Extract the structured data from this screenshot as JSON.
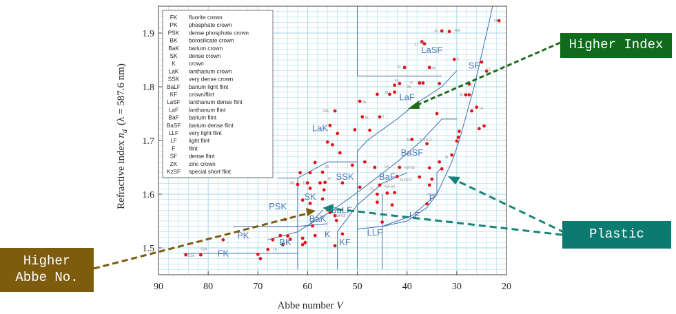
{
  "chart_data": {
    "type": "scatter",
    "title": "",
    "xlabel_main": "Abbe number",
    "xlabel_var": "V",
    "ylabel_main": "Refractive index",
    "ylabel_var": "n",
    "ylabel_sub": "d",
    "ylabel_paren": "(λ = 587.6 nm)",
    "xlim": [
      90,
      20
    ],
    "ylim": [
      1.45,
      1.95
    ],
    "x_ticks": [
      "90",
      "80",
      "70",
      "60",
      "50",
      "40",
      "30",
      "20"
    ],
    "y_ticks": [
      "1.5",
      "1.6",
      "1.7",
      "1.8",
      "1.9"
    ],
    "grid": true,
    "legend": [
      {
        "abbr": "FK",
        "desc": "fluorite crown"
      },
      {
        "abbr": "PK",
        "desc": "phosphate crown"
      },
      {
        "abbr": "PSK",
        "desc": "dense phosphate crown"
      },
      {
        "abbr": "BK",
        "desc": "borosilicate crown"
      },
      {
        "abbr": "BaK",
        "desc": "barium crown"
      },
      {
        "abbr": "SK",
        "desc": "dense crown"
      },
      {
        "abbr": "K",
        "desc": "crown"
      },
      {
        "abbr": "LaK",
        "desc": "lanthanum crown"
      },
      {
        "abbr": "SSK",
        "desc": "very dense crown"
      },
      {
        "abbr": "BaLF",
        "desc": "barium light flint"
      },
      {
        "abbr": "KF",
        "desc": "crown/flint"
      },
      {
        "abbr": "LaSF",
        "desc": "lanthanum dense flint"
      },
      {
        "abbr": "LaF",
        "desc": "lanthanum flint"
      },
      {
        "abbr": "BaF",
        "desc": "barium flint"
      },
      {
        "abbr": "BaSF",
        "desc": "barium dense flint"
      },
      {
        "abbr": "LLF",
        "desc": "very light flint"
      },
      {
        "abbr": "LF",
        "desc": "light flint"
      },
      {
        "abbr": "F",
        "desc": "flint"
      },
      {
        "abbr": "SF",
        "desc": "dense flint"
      },
      {
        "abbr": "ZK",
        "desc": "zinc crown"
      },
      {
        "abbr": "KzSF",
        "desc": "special short flint"
      }
    ],
    "region_labels": [
      {
        "text": "FK",
        "x": 77,
        "y": 1.484
      },
      {
        "text": "PK",
        "x": 73,
        "y": 1.517
      },
      {
        "text": "BK",
        "x": 64.5,
        "y": 1.505
      },
      {
        "text": "PSK",
        "x": 66,
        "y": 1.572
      },
      {
        "text": "BaK",
        "x": 58,
        "y": 1.549
      },
      {
        "text": "SK",
        "x": 59.5,
        "y": 1.59
      },
      {
        "text": "K",
        "x": 56,
        "y": 1.52
      },
      {
        "text": "BaLF",
        "x": 53.2,
        "y": 1.565
      },
      {
        "text": "KF",
        "x": 52.5,
        "y": 1.505
      },
      {
        "text": "LLF",
        "x": 46.5,
        "y": 1.523
      },
      {
        "text": "LF",
        "x": 38.5,
        "y": 1.555
      },
      {
        "text": "F",
        "x": 35,
        "y": 1.587
      },
      {
        "text": "SSK",
        "x": 52.5,
        "y": 1.627
      },
      {
        "text": "BaF",
        "x": 44,
        "y": 1.627
      },
      {
        "text": "BaSF",
        "x": 39,
        "y": 1.672
      },
      {
        "text": "LaK",
        "x": 57.5,
        "y": 1.717
      },
      {
        "text": "LaF",
        "x": 40,
        "y": 1.775
      },
      {
        "text": "LaSF",
        "x": 35,
        "y": 1.863
      },
      {
        "text": "SF",
        "x": 26.5,
        "y": 1.834
      }
    ],
    "points": [
      [
        21.5,
        1.923
      ],
      [
        31.5,
        1.903
      ],
      [
        33,
        1.904
      ],
      [
        36.5,
        1.88
      ],
      [
        37,
        1.884
      ],
      [
        30.5,
        1.851
      ],
      [
        25,
        1.846
      ],
      [
        40.5,
        1.836
      ],
      [
        35.5,
        1.836
      ],
      [
        24,
        1.829
      ],
      [
        41.5,
        1.806
      ],
      [
        37.5,
        1.807
      ],
      [
        36.8,
        1.807
      ],
      [
        33.5,
        1.806
      ],
      [
        42.5,
        1.803
      ],
      [
        27.5,
        1.805
      ],
      [
        42.5,
        1.79
      ],
      [
        43.5,
        1.786
      ],
      [
        27.5,
        1.785
      ],
      [
        28.2,
        1.785
      ],
      [
        46,
        1.786
      ],
      [
        49.5,
        1.773
      ],
      [
        26,
        1.762
      ],
      [
        27,
        1.755
      ],
      [
        54.5,
        1.755
      ],
      [
        34,
        1.75
      ],
      [
        49,
        1.744
      ],
      [
        45.5,
        1.744
      ],
      [
        24.5,
        1.727
      ],
      [
        55.5,
        1.728
      ],
      [
        25.5,
        1.722
      ],
      [
        50.5,
        1.72
      ],
      [
        47.5,
        1.719
      ],
      [
        54,
        1.713
      ],
      [
        29.5,
        1.717
      ],
      [
        29.7,
        1.706
      ],
      [
        30,
        1.699
      ],
      [
        56,
        1.697
      ],
      [
        55,
        1.692
      ],
      [
        39,
        1.702
      ],
      [
        36,
        1.694
      ],
      [
        53.5,
        1.677
      ],
      [
        31,
        1.673
      ],
      [
        33.5,
        1.66
      ],
      [
        48.5,
        1.66
      ],
      [
        58.5,
        1.659
      ],
      [
        51,
        1.654
      ],
      [
        46.5,
        1.65
      ],
      [
        41.5,
        1.65
      ],
      [
        35.5,
        1.649
      ],
      [
        33,
        1.647
      ],
      [
        59.5,
        1.64
      ],
      [
        57,
        1.641
      ],
      [
        61.5,
        1.64
      ],
      [
        37.5,
        1.632
      ],
      [
        42,
        1.633
      ],
      [
        35,
        1.628
      ],
      [
        35.5,
        1.617
      ],
      [
        45.5,
        1.617
      ],
      [
        49.5,
        1.613
      ],
      [
        46,
        1.6
      ],
      [
        56.5,
        1.622
      ],
      [
        53,
        1.621
      ],
      [
        57.5,
        1.621
      ],
      [
        60,
        1.621
      ],
      [
        62,
        1.618
      ],
      [
        59.5,
        1.611
      ],
      [
        56.7,
        1.608
      ],
      [
        42.5,
        1.603
      ],
      [
        44,
        1.602
      ],
      [
        57,
        1.591
      ],
      [
        61,
        1.589
      ],
      [
        59.5,
        1.583
      ],
      [
        43,
        1.58
      ],
      [
        36,
        1.582
      ],
      [
        46,
        1.585
      ],
      [
        56,
        1.574
      ],
      [
        56,
        1.571
      ],
      [
        55.5,
        1.566
      ],
      [
        54.5,
        1.56
      ],
      [
        54.2,
        1.551
      ],
      [
        45,
        1.548
      ],
      [
        64.5,
        1.553
      ],
      [
        59,
        1.541
      ],
      [
        53,
        1.526
      ],
      [
        58.5,
        1.523
      ],
      [
        61,
        1.518
      ],
      [
        63.5,
        1.516
      ],
      [
        64,
        1.522
      ],
      [
        65.5,
        1.523
      ],
      [
        67,
        1.515
      ],
      [
        69.5,
        1.48
      ],
      [
        77,
        1.515
      ],
      [
        60.5,
        1.51
      ],
      [
        61,
        1.506
      ],
      [
        54.5,
        1.504
      ],
      [
        65,
        1.506
      ],
      [
        68,
        1.497
      ],
      [
        70,
        1.488
      ],
      [
        81.5,
        1.487
      ],
      [
        84.5,
        1.487
      ]
    ],
    "point_labels": [
      {
        "text": "51A",
        "x": 84,
        "y": 1.486
      },
      {
        "text": "52A",
        "x": 81.5,
        "y": 1.498
      },
      {
        "text": "10",
        "x": 67,
        "y": 1.497
      },
      {
        "text": "66",
        "x": 22.5,
        "y": 1.924
      },
      {
        "text": "46A",
        "x": 30.5,
        "y": 1.905
      },
      {
        "text": "45",
        "x": 34.5,
        "y": 1.904
      },
      {
        "text": "31A",
        "x": 37.5,
        "y": 1.883
      },
      {
        "text": "31",
        "x": 38.5,
        "y": 1.879
      },
      {
        "text": "40",
        "x": 35,
        "y": 1.835
      },
      {
        "text": "41",
        "x": 42,
        "y": 1.837
      },
      {
        "text": "47",
        "x": 39.5,
        "y": 1.808
      },
      {
        "text": "44",
        "x": 42.5,
        "y": 1.812
      },
      {
        "text": "36",
        "x": 40,
        "y": 1.8
      },
      {
        "text": "21",
        "x": 44.5,
        "y": 1.79
      },
      {
        "text": "57",
        "x": 24,
        "y": 1.833
      },
      {
        "text": "6",
        "x": 30,
        "y": 1.852
      },
      {
        "text": "56",
        "x": 29.5,
        "y": 1.785
      },
      {
        "text": "34",
        "x": 49,
        "y": 1.772
      },
      {
        "text": "33A",
        "x": 57,
        "y": 1.755
      },
      {
        "text": "35",
        "x": 48.5,
        "y": 1.742
      },
      {
        "text": "2",
        "x": 45,
        "y": 1.745
      },
      {
        "text": "KzFS12",
        "x": 37.5,
        "y": 1.702
      },
      {
        "text": "64",
        "x": 40,
        "y": 1.702
      },
      {
        "text": "KzFS5",
        "x": 40.5,
        "y": 1.65
      },
      {
        "text": "KzFS11",
        "x": 41.5,
        "y": 1.627
      },
      {
        "text": "KzFS4",
        "x": 44.5,
        "y": 1.615
      },
      {
        "text": "KzFS2",
        "x": 54.5,
        "y": 1.56
      },
      {
        "text": "19",
        "x": 32.5,
        "y": 1.669
      },
      {
        "text": "22",
        "x": 56.5,
        "y": 1.651
      },
      {
        "text": "53",
        "x": 44.5,
        "y": 1.652
      },
      {
        "text": "58",
        "x": 63.5,
        "y": 1.621
      },
      {
        "text": "16",
        "x": 61,
        "y": 1.621
      },
      {
        "text": "15",
        "x": 56,
        "y": 1.629
      },
      {
        "text": "12",
        "x": 47.5,
        "y": 1.611
      },
      {
        "text": "14",
        "x": 25.5,
        "y": 1.76
      }
    ],
    "boundaries": [
      [
        [
          75,
          1.54
        ],
        [
          62,
          1.54
        ],
        [
          56,
          1.545
        ]
      ],
      [
        [
          85,
          1.49
        ],
        [
          70,
          1.49
        ],
        [
          62,
          1.49
        ]
      ],
      [
        [
          68,
          1.515
        ],
        [
          62,
          1.53
        ],
        [
          55,
          1.57
        ],
        [
          49,
          1.61
        ],
        [
          42,
          1.66
        ],
        [
          37,
          1.7
        ],
        [
          33,
          1.74
        ],
        [
          30,
          1.74
        ]
      ],
      [
        [
          66,
          1.63
        ],
        [
          62,
          1.63
        ],
        [
          56,
          1.66
        ],
        [
          50,
          1.66
        ],
        [
          50,
          1.68
        ],
        [
          48,
          1.7
        ],
        [
          42,
          1.74
        ],
        [
          38,
          1.77
        ],
        [
          33,
          1.8
        ],
        [
          30,
          1.83
        ]
      ],
      [
        [
          62,
          1.46
        ],
        [
          62,
          1.63
        ]
      ],
      [
        [
          60,
          1.54
        ],
        [
          57,
          1.57
        ]
      ],
      [
        [
          54,
          1.46
        ],
        [
          54,
          1.53
        ],
        [
          50,
          1.58
        ],
        [
          45,
          1.62
        ],
        [
          40,
          1.64
        ]
      ],
      [
        [
          50,
          1.46
        ],
        [
          50,
          1.66
        ]
      ],
      [
        [
          50,
          1.535
        ],
        [
          45,
          1.54
        ],
        [
          39,
          1.56
        ],
        [
          34,
          1.6
        ]
      ],
      [
        [
          45,
          1.46
        ],
        [
          45,
          1.6
        ]
      ],
      [
        [
          50,
          1.82
        ],
        [
          50,
          1.92
        ],
        [
          50,
          1.95
        ]
      ],
      [
        [
          50,
          1.82
        ],
        [
          33,
          1.82
        ]
      ],
      [
        [
          36,
          1.6
        ],
        [
          34,
          1.6
        ],
        [
          34,
          1.64
        ],
        [
          33,
          1.65
        ]
      ],
      [
        [
          45,
          1.54
        ],
        [
          40,
          1.55
        ],
        [
          36,
          1.575
        ],
        [
          34,
          1.6
        ],
        [
          33,
          1.62
        ],
        [
          31,
          1.66
        ],
        [
          29.5,
          1.7
        ],
        [
          28,
          1.75
        ],
        [
          26.5,
          1.8
        ],
        [
          25.5,
          1.84
        ],
        [
          24.5,
          1.88
        ],
        [
          23.5,
          1.92
        ],
        [
          22.8,
          1.95
        ]
      ]
    ]
  },
  "callouts": {
    "higher_index": "Higher Index",
    "plastic": "Plastic",
    "higher_abbe_line1": "Higher",
    "higher_abbe_line2": "Abbe No."
  },
  "colors": {
    "grid_line": "#9bd7e0",
    "boundary": "#4b78b8",
    "point": "#e0141b",
    "arrow_green": "#1f6b1a",
    "arrow_teal": "#16847a",
    "arrow_brown": "#7d5c0e",
    "callout_green": "#0f6a1c",
    "callout_teal": "#0d7a72",
    "callout_brown": "#7d5c0e"
  }
}
